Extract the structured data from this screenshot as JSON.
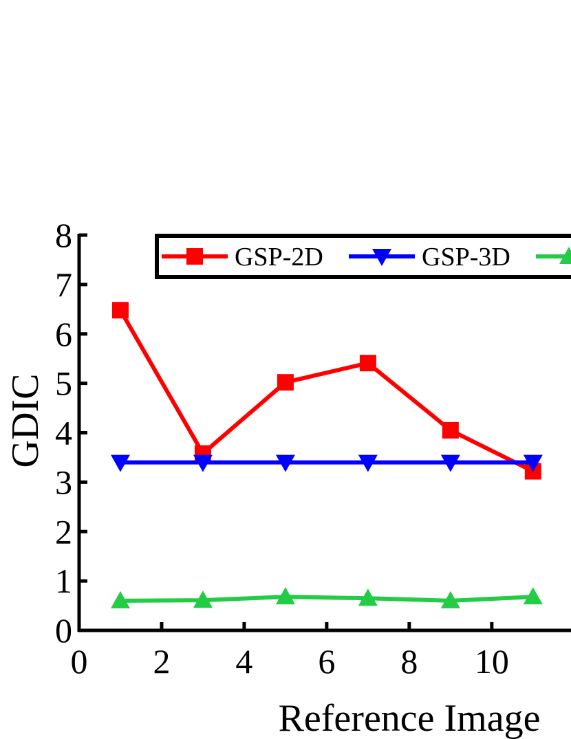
{
  "chart_data": {
    "type": "line",
    "x_label": "Reference Image",
    "y_label": "GDIC",
    "x": [
      1,
      3,
      5,
      7,
      9,
      11
    ],
    "series": [
      {
        "name": "GSP-2D",
        "color": "#ff0000",
        "marker": "square",
        "values": [
          6.48,
          3.58,
          5.02,
          5.41,
          4.05,
          3.22
        ]
      },
      {
        "name": "GSP-3D",
        "color": "#0000ff",
        "marker": "triangle-down",
        "values": [
          3.4,
          3.4,
          3.4,
          3.4,
          3.4,
          3.4
        ]
      },
      {
        "color": "#22cc44",
        "marker": "triangle-up",
        "values": [
          0.6,
          0.61,
          0.68,
          0.65,
          0.6,
          0.68
        ]
      }
    ],
    "xlim": [
      0,
      11.92
    ],
    "xticks": [
      0,
      2,
      4,
      6,
      8,
      10
    ],
    "ylim": [
      0,
      8
    ],
    "yticks": [
      0,
      1,
      2,
      3,
      4,
      5,
      6,
      7,
      8
    ]
  }
}
